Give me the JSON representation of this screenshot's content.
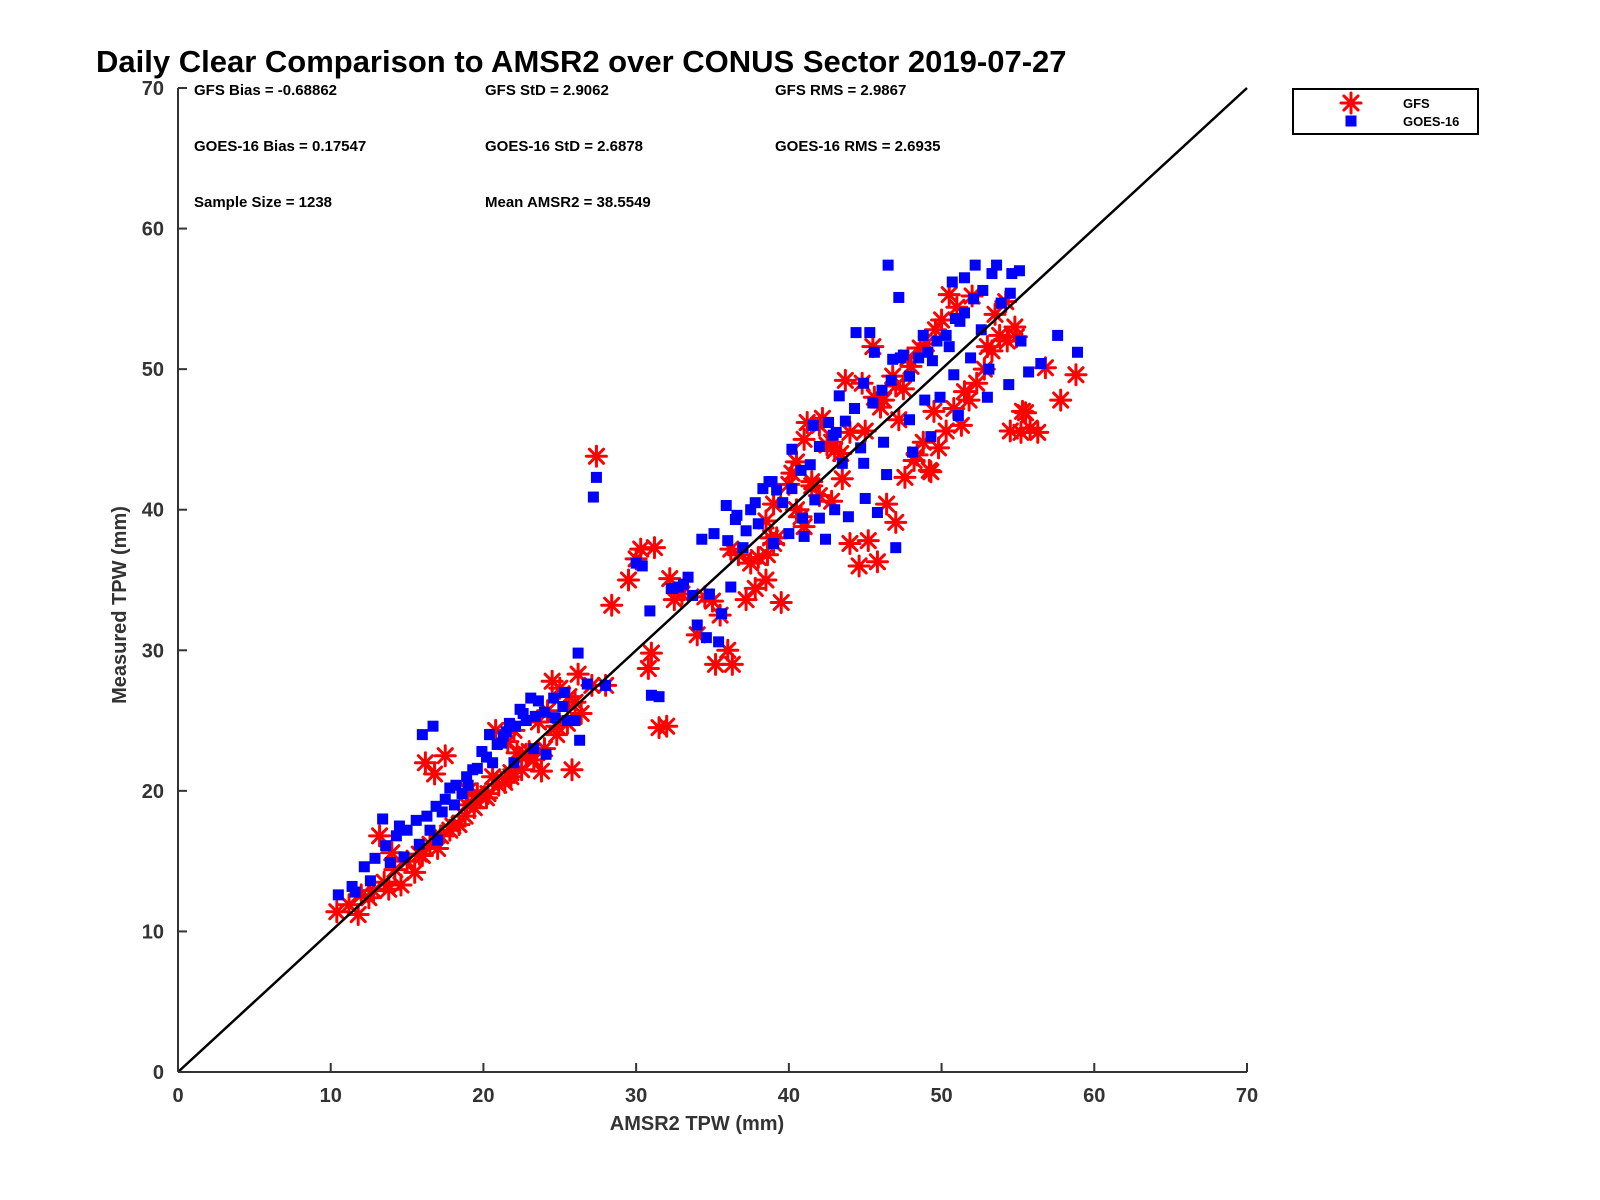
{
  "chart_data": {
    "type": "scatter",
    "title": "Daily Clear Comparison to AMSR2 over CONUS Sector 2019-07-27",
    "xlabel": "AMSR2 TPW (mm)",
    "ylabel": "Measured TPW (mm)",
    "xlim": [
      0,
      70
    ],
    "ylim": [
      0,
      70
    ],
    "xticks": [
      "0",
      "10",
      "20",
      "30",
      "40",
      "50",
      "60",
      "70"
    ],
    "yticks": [
      "0",
      "10",
      "20",
      "30",
      "40",
      "50",
      "60",
      "70"
    ],
    "grid": false,
    "legend_position": "outside-top-right",
    "reference_line": "1:1",
    "stats": [
      [
        "GFS Bias = -0.68862",
        "GFS StD = 2.9062",
        "GFS RMS = 2.9867"
      ],
      [
        "GOES-16 Bias = 0.17547",
        "GOES-16 StD = 2.6878",
        "GOES-16 RMS = 2.6935"
      ],
      [
        "Sample Size = 1238",
        "Mean AMSR2 = 38.5549",
        ""
      ]
    ],
    "series": [
      {
        "name": "GFS",
        "marker": "asterisk",
        "color": "#ff0000",
        "x": [
          10.4,
          11.2,
          12.0,
          12.8,
          13.5,
          14.2,
          15.0,
          15.8,
          16.5,
          17.2,
          18.0,
          18.8,
          19.5,
          20.3,
          21.0,
          21.8,
          22.5,
          23.3,
          24.0,
          24.8,
          25.5,
          16.2,
          16.8,
          13.2,
          14.0,
          17.5,
          19.0,
          22.0,
          24.5,
          26.2,
          27.1,
          27.4,
          25.8,
          26.4,
          28.0,
          30.3,
          31.2,
          30.8,
          31.0,
          31.5,
          32.0,
          32.5,
          34.0,
          34.5,
          35.5,
          36.0,
          36.3,
          35.2,
          37.2,
          37.8,
          38.5,
          39.5,
          38.0,
          39.0,
          40.5,
          41.0,
          41.5,
          42.0,
          42.8,
          43.5,
          44.0,
          44.6,
          45.2,
          45.8,
          46.4,
          47.0,
          47.6,
          48.2,
          48.8,
          49.3,
          49.8,
          50.3,
          50.8,
          51.3,
          51.8,
          52.3,
          52.8,
          53.3,
          53.8,
          54.3,
          54.8,
          55.3,
          55.8,
          56.3,
          56.8,
          57.8,
          58.8,
          41.2,
          42.5,
          43.0,
          44.0,
          45.0,
          46.0,
          47.0,
          48.0,
          49.0,
          50.0,
          51.0,
          52.0,
          40.0,
          39.0,
          38.5,
          40.5,
          41.0,
          42.2,
          43.4,
          44.8,
          45.6,
          46.8,
          47.8,
          48.6,
          49.6,
          50.5,
          53.5,
          54.2,
          54.9,
          55.5,
          54.5,
          55.2,
          38.6,
          39.2,
          40.8,
          41.5,
          42.8,
          46.2,
          47.2,
          48.4,
          49.2,
          43.7,
          45.5,
          47.5,
          49.5,
          51.5,
          53.0,
          38.8,
          40.2,
          42.0,
          36.7,
          37.5,
          36.2,
          35.0,
          33.0,
          32.2,
          30.0,
          29.5,
          28.4,
          20.8,
          21.6,
          22.8,
          23.8,
          24.8,
          25.6,
          19.6,
          18.4,
          17.0,
          15.5,
          14.6,
          13.8,
          12.5,
          11.8,
          18.9,
          20.2,
          21.4,
          22.2,
          23.6,
          24.2,
          25.0,
          26.0,
          16.0,
          17.8,
          19.4,
          20.6,
          21.8,
          23.0
        ],
        "y": [
          11.4,
          11.9,
          12.6,
          12.9,
          13.5,
          14.4,
          15.0,
          15.5,
          16.2,
          16.8,
          17.5,
          18.2,
          19.3,
          19.8,
          20.4,
          21.0,
          21.5,
          22.2,
          23.0,
          24.0,
          24.8,
          22.0,
          21.2,
          16.8,
          15.6,
          22.5,
          20.0,
          24.3,
          27.8,
          28.3,
          27.5,
          43.8,
          21.5,
          25.5,
          27.5,
          37.2,
          37.3,
          28.7,
          29.8,
          24.5,
          24.6,
          33.6,
          31.1,
          33.8,
          32.5,
          30.0,
          29.0,
          29.0,
          33.6,
          34.4,
          35.0,
          33.4,
          36.6,
          37.6,
          40.0,
          38.8,
          42.0,
          41.0,
          40.6,
          42.2,
          37.6,
          36.0,
          37.8,
          36.3,
          40.4,
          39.1,
          42.3,
          43.5,
          44.8,
          42.7,
          44.4,
          45.6,
          47.2,
          46.0,
          47.8,
          49.0,
          50.0,
          51.3,
          52.4,
          52.0,
          53.0,
          47.0,
          45.8,
          45.5,
          50.1,
          47.8,
          49.6,
          46.2,
          44.6,
          44.2,
          45.5,
          45.6,
          47.3,
          48.8,
          50.2,
          51.8,
          53.5,
          54.4,
          55.2,
          41.8,
          40.4,
          39.2,
          43.4,
          45.0,
          46.5,
          44.0,
          49.0,
          48.0,
          49.5,
          50.8,
          51.5,
          52.8,
          55.3,
          53.9,
          54.8,
          52.3,
          46.9,
          45.6,
          45.5,
          36.8,
          38.0,
          39.5,
          41.7,
          44.8,
          47.8,
          46.4,
          43.9,
          42.8,
          49.2,
          51.6,
          48.6,
          47.0,
          48.4,
          51.6,
          38.0,
          42.6,
          46.0,
          36.8,
          36.2,
          37.2,
          33.5,
          34.0,
          35.1,
          36.5,
          35.0,
          33.2,
          24.3,
          23.5,
          22.6,
          21.4,
          24.6,
          26.7,
          19.8,
          17.6,
          15.9,
          14.2,
          13.3,
          13.0,
          12.4,
          11.2,
          19.0,
          19.5,
          20.6,
          22.7,
          24.9,
          25.7,
          27.3,
          26.3,
          15.4,
          17.2,
          18.8,
          21.0,
          21.3,
          22.8
        ]
      },
      {
        "name": "GOES-16",
        "marker": "square",
        "color": "#0000ff",
        "x": [
          10.5,
          11.4,
          12.2,
          12.9,
          13.6,
          14.3,
          15.0,
          15.6,
          16.3,
          16.9,
          17.5,
          18.2,
          18.9,
          19.6,
          20.2,
          20.9,
          21.5,
          22.1,
          22.8,
          23.4,
          24.0,
          24.7,
          25.3,
          26.0,
          16.0,
          16.7,
          13.4,
          14.5,
          17.8,
          19.3,
          21.7,
          23.6,
          26.2,
          26.8,
          27.2,
          27.4,
          26.3,
          28.0,
          30.0,
          30.4,
          30.9,
          31.0,
          31.5,
          32.3,
          32.8,
          33.4,
          34.3,
          35.1,
          35.6,
          36.2,
          34.8,
          33.7,
          35.9,
          36.6,
          37.2,
          37.8,
          38.3,
          38.9,
          39.6,
          40.2,
          40.8,
          41.4,
          42.0,
          42.6,
          43.1,
          43.7,
          44.3,
          44.9,
          45.5,
          46.1,
          46.7,
          47.3,
          47.9,
          48.5,
          49.1,
          49.7,
          50.3,
          50.9,
          51.5,
          52.1,
          52.7,
          53.3,
          53.9,
          54.5,
          55.1,
          55.7,
          56.5,
          57.6,
          58.9,
          46.5,
          47.2,
          50.7,
          51.5,
          52.2,
          53.6,
          54.6,
          53.0,
          44.4,
          45.3,
          41.6,
          42.9,
          43.3,
          44.7,
          45.6,
          46.8,
          47.5,
          48.8,
          49.4,
          50.5,
          51.2,
          52.6,
          40.2,
          39.2,
          38.7,
          37.5,
          36.5,
          40.9,
          41.7,
          43.5,
          44.9,
          46.2,
          47.9,
          48.9,
          49.9,
          50.8,
          51.9,
          53.1,
          54.4,
          55.2,
          42.4,
          43.9,
          45.0,
          46.4,
          48.1,
          49.3,
          51.1,
          36.0,
          37.0,
          38.0,
          39.0,
          40.0,
          41.0,
          42.0,
          43.0,
          45.8,
          47.0,
          34.0,
          34.6,
          35.4,
          32.4,
          33.1,
          20.4,
          21.2,
          22.0,
          22.6,
          23.3,
          24.1,
          25.2,
          19.0,
          18.1,
          17.0,
          15.8,
          14.8,
          13.9,
          12.6,
          11.6,
          19.9,
          20.6,
          21.3,
          22.4,
          23.1,
          24.6,
          25.5,
          16.5,
          17.3,
          18.6
        ],
        "y": [
          12.6,
          13.2,
          14.6,
          15.2,
          16.1,
          16.8,
          17.2,
          17.9,
          18.2,
          18.9,
          19.4,
          20.4,
          21.0,
          21.6,
          22.4,
          23.3,
          24.2,
          24.6,
          25.0,
          25.3,
          25.6,
          25.2,
          27.0,
          25.0,
          24.0,
          24.6,
          18.0,
          17.5,
          20.2,
          21.5,
          24.8,
          26.4,
          29.8,
          27.6,
          40.9,
          42.3,
          23.6,
          27.5,
          36.2,
          36.0,
          32.8,
          26.8,
          26.7,
          34.4,
          34.5,
          35.2,
          37.9,
          38.3,
          32.6,
          34.5,
          34.0,
          33.9,
          40.3,
          39.6,
          38.5,
          40.5,
          41.5,
          42.0,
          40.5,
          44.3,
          42.8,
          43.2,
          44.5,
          46.2,
          45.5,
          46.3,
          47.2,
          49.0,
          47.6,
          48.5,
          49.2,
          50.8,
          49.5,
          50.8,
          51.2,
          52.0,
          52.4,
          53.6,
          54.0,
          55.0,
          55.6,
          56.8,
          54.7,
          55.4,
          57.0,
          49.8,
          50.4,
          52.4,
          51.2,
          57.4,
          55.1,
          56.2,
          56.5,
          57.4,
          57.4,
          56.8,
          48.0,
          52.6,
          52.6,
          46.0,
          45.3,
          48.1,
          44.4,
          51.2,
          50.7,
          51.0,
          52.4,
          50.6,
          51.6,
          53.4,
          52.8,
          41.5,
          41.4,
          42.0,
          40.0,
          39.3,
          39.4,
          40.7,
          43.3,
          43.3,
          44.8,
          46.4,
          47.8,
          48.0,
          49.6,
          50.8,
          50.0,
          48.9,
          52.0,
          37.9,
          39.5,
          40.8,
          42.5,
          44.1,
          45.2,
          46.7,
          37.8,
          37.3,
          39.0,
          37.6,
          38.3,
          38.1,
          39.4,
          40.0,
          39.8,
          37.3,
          31.8,
          30.9,
          30.6,
          34.4,
          34.7,
          24.0,
          23.4,
          22.0,
          25.5,
          23.0,
          22.6,
          26.0,
          20.4,
          19.0,
          16.5,
          16.2,
          15.3,
          14.9,
          13.6,
          12.8,
          22.8,
          22.0,
          23.9,
          25.8,
          26.6,
          26.6,
          25.0,
          17.2,
          18.5,
          19.8
        ]
      }
    ]
  }
}
